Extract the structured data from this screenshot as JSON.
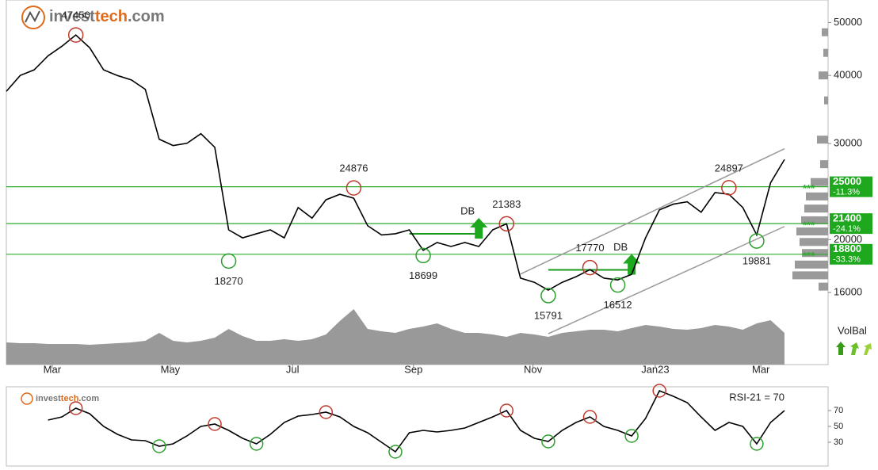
{
  "logo": [
    "invest",
    "tech",
    ".com"
  ],
  "chart_data": [
    {
      "type": "line",
      "log_scale": true,
      "ylim": [
        11800,
        55000
      ],
      "yticks": [
        50000,
        40000,
        30000,
        20000,
        16000
      ],
      "xlim": [
        0,
        56
      ],
      "xticks": [
        {
          "value": 3.3,
          "label": "Mar"
        },
        {
          "value": 11.8,
          "label": "May"
        },
        {
          "value": 20.6,
          "label": "Jul"
        },
        {
          "value": 29.3,
          "label": "Sep"
        },
        {
          "value": 37.9,
          "label": "Nov"
        },
        {
          "value": 46.7,
          "label": "Jan23"
        },
        {
          "value": 54.3,
          "label": "Mar"
        }
      ],
      "series": [
        {
          "color": "#000000",
          "values": [
            37400,
            40000,
            40950,
            43450,
            45250,
            47450,
            44950,
            40950,
            39980,
            39250,
            37720,
            30560,
            29750,
            30040,
            31280,
            29530,
            20840,
            20150,
            20500,
            20840,
            20150,
            22900,
            21900,
            23660,
            24220,
            23820,
            21210,
            20400,
            20500,
            20840,
            19120,
            19760,
            19430,
            19760,
            19430,
            20840,
            21383,
            17000,
            16700,
            16160,
            16700,
            17100,
            17620,
            17000,
            16870,
            17270,
            20150,
            22680,
            23230,
            23460,
            22450,
            24390,
            24220,
            22900,
            20400,
            25430,
            28050
          ]
        }
      ],
      "volume": {
        "color": "#999999",
        "values": [
          28,
          27,
          27,
          26,
          26,
          26,
          25,
          26,
          27,
          28,
          30,
          40,
          30,
          28,
          30,
          34,
          45,
          36,
          30,
          30,
          32,
          30,
          32,
          38,
          55,
          70,
          45,
          42,
          40,
          45,
          48,
          52,
          45,
          40,
          40,
          38,
          35,
          40,
          38,
          35,
          40,
          42,
          44,
          44,
          42,
          46,
          50,
          48,
          45,
          44,
          46,
          50,
          48,
          44,
          52,
          56,
          40
        ]
      },
      "extrema": [
        {
          "index": 5,
          "value": 47450,
          "kind": "top"
        },
        {
          "index": 16,
          "value": 18270,
          "kind": "bottom"
        },
        {
          "index": 25,
          "value": 24876,
          "kind": "top"
        },
        {
          "index": 30,
          "value": 18699,
          "kind": "bottom"
        },
        {
          "index": 36,
          "value": 21383,
          "kind": "top"
        },
        {
          "index": 39,
          "value": 15791,
          "kind": "bottom"
        },
        {
          "index": 42,
          "value": 17770,
          "kind": "top"
        },
        {
          "index": 44,
          "value": 16512,
          "kind": "bottom"
        },
        {
          "index": 52,
          "value": 24897,
          "kind": "top"
        },
        {
          "index": 54,
          "value": 19881,
          "kind": "bottom"
        }
      ],
      "level_marker": "***",
      "levels": [
        {
          "value": 25000,
          "change": "-11.3%"
        },
        {
          "value": 21400,
          "change": "-24.1%"
        },
        {
          "value": 18800,
          "change": "-33.3%"
        }
      ],
      "level_color": "#2eaa2e",
      "channel": {
        "color": "#999999",
        "upper": {
          "from": 37,
          "to": 56,
          "values": [
            17290,
            29350
          ]
        },
        "lower": {
          "from": 39,
          "to": 56,
          "values": [
            13440,
            21140
          ]
        }
      },
      "breakouts": [
        {
          "text": "DB",
          "from": 29,
          "index": 34,
          "level": 20500
        },
        {
          "text": "DB",
          "from": 39,
          "index": 45,
          "level": 17600
        }
      ],
      "price_volume": {
        "color": "#9a9a9a",
        "levels": [
          48000,
          44000,
          40000,
          36000,
          30500,
          27500,
          25500,
          24000,
          22800,
          21700,
          20700,
          19800,
          18900,
          18000,
          17200,
          16400
        ],
        "values": [
          8,
          6,
          12,
          5,
          14,
          10,
          22,
          28,
          30,
          34,
          40,
          36,
          33,
          42,
          45,
          12
        ]
      },
      "volbal_label": "VolBal"
    },
    {
      "type": "line",
      "label": "RSI-21 = 70",
      "ylim": [
        0,
        100
      ],
      "yticks": [
        70,
        50,
        30
      ],
      "xlim": [
        0,
        56
      ],
      "series": [
        {
          "color": "#000000",
          "values": [
            null,
            null,
            null,
            58,
            62,
            73,
            66,
            50,
            40,
            33,
            32,
            25,
            28,
            38,
            50,
            53,
            45,
            35,
            28,
            40,
            55,
            63,
            65,
            68,
            62,
            50,
            42,
            30,
            18,
            42,
            45,
            43,
            45,
            48,
            55,
            62,
            70,
            45,
            35,
            31,
            45,
            55,
            62,
            50,
            45,
            38,
            60,
            95,
            88,
            80,
            62,
            45,
            55,
            50,
            28,
            55,
            70
          ]
        }
      ],
      "signals": [
        {
          "index": 5,
          "kind": "high"
        },
        {
          "index": 15,
          "kind": "high"
        },
        {
          "index": 23,
          "kind": "high"
        },
        {
          "index": 36,
          "kind": "high"
        },
        {
          "index": 42,
          "kind": "high"
        },
        {
          "index": 47,
          "kind": "high"
        },
        {
          "index": 11,
          "kind": "low"
        },
        {
          "index": 18,
          "kind": "low"
        },
        {
          "index": 28,
          "kind": "low"
        },
        {
          "index": 39,
          "kind": "low"
        },
        {
          "index": 45,
          "kind": "low"
        },
        {
          "index": 54,
          "kind": "low"
        }
      ]
    }
  ]
}
